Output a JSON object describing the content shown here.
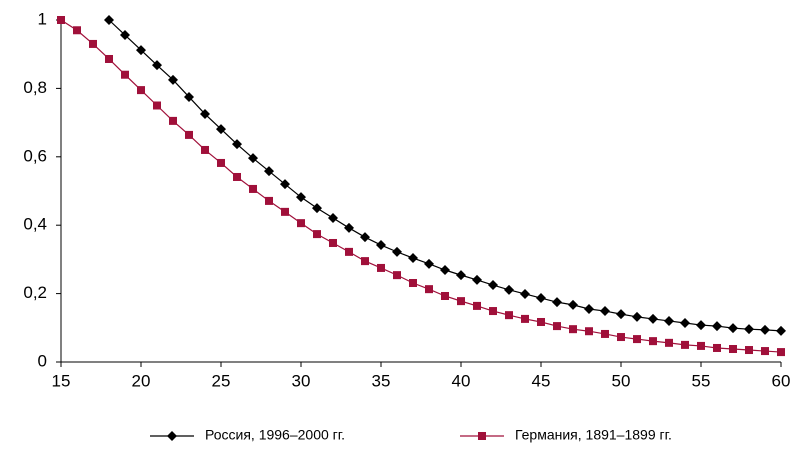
{
  "chart_data": {
    "type": "line",
    "x": [
      15,
      16,
      17,
      18,
      19,
      20,
      21,
      22,
      23,
      24,
      25,
      26,
      27,
      28,
      29,
      30,
      31,
      32,
      33,
      34,
      35,
      36,
      37,
      38,
      39,
      40,
      41,
      42,
      43,
      44,
      45,
      46,
      47,
      48,
      49,
      50,
      51,
      52,
      53,
      54,
      55,
      56,
      57,
      58,
      59,
      60
    ],
    "series": [
      {
        "name": "Россия, 1996–2000 гг.",
        "color": "#000000",
        "marker": "diamond",
        "values": [
          null,
          null,
          null,
          1,
          0.956,
          0.912,
          0.868,
          0.825,
          0.775,
          0.725,
          0.681,
          0.637,
          0.596,
          0.558,
          0.52,
          0.482,
          0.45,
          0.421,
          0.392,
          0.365,
          0.342,
          0.322,
          0.304,
          0.287,
          0.269,
          0.254,
          0.24,
          0.225,
          0.211,
          0.199,
          0.187,
          0.175,
          0.167,
          0.155,
          0.149,
          0.14,
          0.132,
          0.126,
          0.12,
          0.114,
          0.108,
          0.105,
          0.099,
          0.096,
          0.094,
          0.091
        ]
      },
      {
        "name": "Германия, 1891–1899 гг.",
        "color": "#a0103a",
        "marker": "square",
        "values": [
          1,
          0.97,
          0.93,
          0.886,
          0.84,
          0.795,
          0.75,
          0.705,
          0.664,
          0.62,
          0.582,
          0.541,
          0.506,
          0.471,
          0.439,
          0.406,
          0.374,
          0.348,
          0.322,
          0.295,
          0.275,
          0.254,
          0.231,
          0.213,
          0.193,
          0.178,
          0.164,
          0.149,
          0.137,
          0.126,
          0.117,
          0.105,
          0.096,
          0.09,
          0.082,
          0.073,
          0.067,
          0.061,
          0.056,
          0.05,
          0.047,
          0.041,
          0.038,
          0.035,
          0.032,
          0.029
        ]
      }
    ],
    "xlim": [
      15,
      60
    ],
    "xticks": [
      15,
      20,
      25,
      30,
      35,
      40,
      45,
      50,
      55,
      60
    ],
    "ylim": [
      0,
      1
    ],
    "yticks": [
      0,
      {
        "value": 0.2,
        "label": "0,2"
      },
      {
        "value": 0.4,
        "label": "0,4"
      },
      {
        "value": 0.6,
        "label": "0,6"
      },
      {
        "value": 0.8,
        "label": "0,8"
      },
      1
    ],
    "grid": false,
    "legend": "bottom"
  }
}
